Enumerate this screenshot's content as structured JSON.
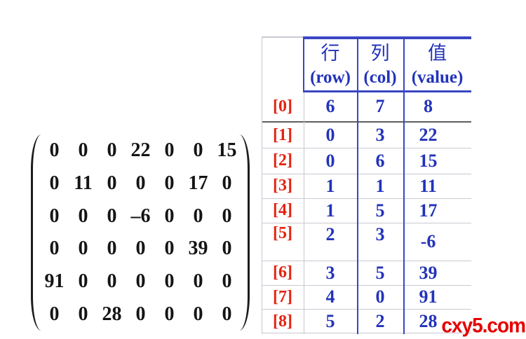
{
  "matrix": {
    "rows": [
      [
        "0",
        "0",
        "0",
        "22",
        "0",
        "0",
        "15"
      ],
      [
        "0",
        "11",
        "0",
        "0",
        "0",
        "17",
        "0"
      ],
      [
        "0",
        "0",
        "0",
        "–6",
        "0",
        "0",
        "0"
      ],
      [
        "0",
        "0",
        "0",
        "0",
        "0",
        "39",
        "0"
      ],
      [
        "91",
        "0",
        "0",
        "0",
        "0",
        "0",
        "0"
      ],
      [
        "0",
        "0",
        "28",
        "0",
        "0",
        "0",
        "0"
      ]
    ]
  },
  "table": {
    "col_headers": [
      {
        "zh": "行",
        "en": "(row)"
      },
      {
        "zh": "列",
        "en": "(col)"
      },
      {
        "zh": "值",
        "en": "(value)"
      }
    ],
    "rows": [
      {
        "label": "[0]",
        "row": "6",
        "col": "7",
        "value": "8"
      },
      {
        "label": "[1]",
        "row": "0",
        "col": "3",
        "value": "22"
      },
      {
        "label": "[2]",
        "row": "0",
        "col": "6",
        "value": "15"
      },
      {
        "label": "[3]",
        "row": "1",
        "col": "1",
        "value": "11"
      },
      {
        "label": "[4]",
        "row": "1",
        "col": "5",
        "value": "17"
      },
      {
        "label": "[5]",
        "row": "2",
        "col": "3",
        "value": "-6"
      },
      {
        "label": "[6]",
        "row": "3",
        "col": "5",
        "value": "39"
      },
      {
        "label": "[7]",
        "row": "4",
        "col": "0",
        "value": "91"
      },
      {
        "label": "[8]",
        "row": "5",
        "col": "2",
        "value": "28"
      }
    ]
  },
  "watermark": {
    "text": "cxy5.com"
  },
  "colors": {
    "value_blue": "#2233ba",
    "line_blue": "#3a46c4",
    "label_red": "#e42310",
    "dark_separator": "#5f5f5f",
    "light_line": "#c9c9d2",
    "matrix_black": "#141414",
    "watermark_red": "#e60000"
  }
}
